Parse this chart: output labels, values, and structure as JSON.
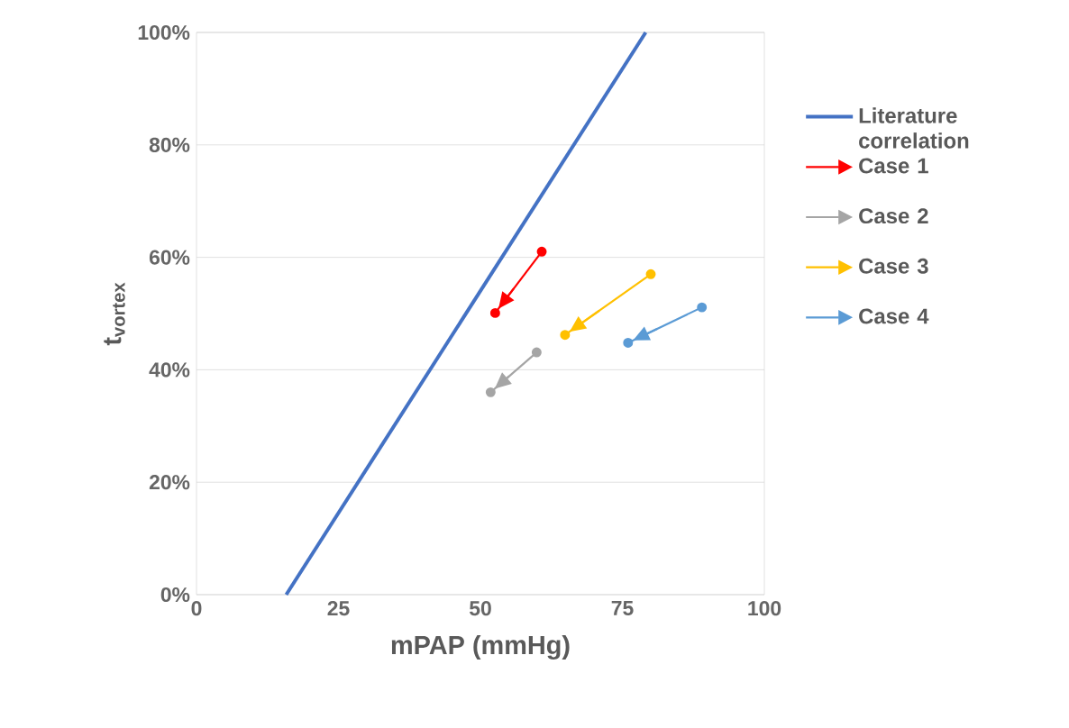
{
  "chart_data": {
    "type": "line",
    "xlabel": "mPAP (mmHg)",
    "ylabel": "t$_{vortex}$",
    "xlim": [
      0,
      100
    ],
    "xticks": [
      0,
      25,
      50,
      75,
      100
    ],
    "ylim": [
      0,
      100
    ],
    "yticks": [
      {
        "value": 0,
        "label": "0%"
      },
      {
        "value": 20,
        "label": "20%"
      },
      {
        "value": 40,
        "label": "40%"
      },
      {
        "value": 60,
        "label": "60%"
      },
      {
        "value": 80,
        "label": "80%"
      },
      {
        "value": 100,
        "label": "100%"
      }
    ],
    "grid": "y",
    "legend": "right",
    "line_style": "solid",
    "series": [
      {
        "name": "Literature correlation",
        "color": "#4472c4",
        "marker": "none",
        "x": [
          15.8,
          79.1
        ],
        "values": [
          0,
          100
        ]
      },
      {
        "name": "Case 1",
        "color": "#ff0000",
        "marker": "circle",
        "x": [
          60.8,
          52.6
        ],
        "values": [
          61.0,
          50.1
        ]
      },
      {
        "name": "Case 2",
        "color": "#a5a5a5",
        "marker": "circle",
        "x": [
          59.9,
          51.8
        ],
        "values": [
          43.1,
          36.0
        ]
      },
      {
        "name": "Case 3",
        "color": "#ffc000",
        "marker": "circle",
        "x": [
          80.0,
          64.9
        ],
        "values": [
          57.0,
          46.2
        ]
      },
      {
        "name": "Case 4",
        "color": "#5b9bd5",
        "marker": "circle",
        "x": [
          89.0,
          76.0
        ],
        "values": [
          51.1,
          44.8
        ]
      }
    ]
  }
}
